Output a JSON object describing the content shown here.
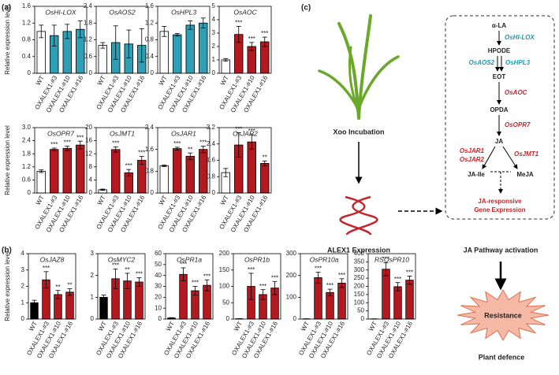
{
  "panel_labels": [
    "(a)",
    "(b)",
    "(c)"
  ],
  "chart_data": [
    {
      "type": "bar",
      "title": "OsHI-LOX",
      "ylabel": "Relative expression level",
      "categories": [
        "WT",
        "OXALEX1-#3",
        "OXALEX1-#10",
        "OXALEX1-#16"
      ],
      "values": [
        1.0,
        0.9,
        1.0,
        1.05
      ],
      "errors": [
        0.15,
        0.25,
        0.17,
        0.2
      ],
      "colors": [
        "#ffffff",
        "#2e9fb5",
        "#2e9fb5",
        "#2e9fb5"
      ],
      "annotations": [
        null,
        null,
        null,
        null
      ],
      "ylim": [
        0,
        1.6
      ],
      "yticks": [
        0,
        0.4,
        0.8,
        1.2,
        1.6
      ]
    },
    {
      "type": "bar",
      "title": "OsAOS2",
      "categories": [
        "WT",
        "OXALEX1-#3",
        "OXALEX1-#10",
        "OXALEX1-#16"
      ],
      "values": [
        1.0,
        1.1,
        1.05,
        1.0
      ],
      "errors": [
        0.1,
        0.6,
        0.5,
        0.6
      ],
      "colors": [
        "#ffffff",
        "#2e9fb5",
        "#2e9fb5",
        "#2e9fb5"
      ],
      "annotations": [
        null,
        null,
        null,
        null
      ],
      "ylim": [
        0,
        2.4
      ],
      "yticks": [
        0,
        0.6,
        1.2,
        1.8,
        2.4
      ]
    },
    {
      "type": "bar",
      "title": "OsHPL3",
      "categories": [
        "WT",
        "OXALEX1-#3",
        "OXALEX1-#10",
        "OXALEX1-#16"
      ],
      "values": [
        1.0,
        0.92,
        1.15,
        1.2
      ],
      "errors": [
        0.12,
        0.03,
        0.1,
        0.12
      ],
      "colors": [
        "#ffffff",
        "#2e9fb5",
        "#2e9fb5",
        "#2e9fb5"
      ],
      "annotations": [
        null,
        null,
        null,
        null
      ],
      "ylim": [
        0,
        1.6
      ],
      "yticks": [
        0,
        0.4,
        0.8,
        1.2,
        1.6
      ]
    },
    {
      "type": "bar",
      "title": "OsAOC",
      "categories": [
        "WT",
        "OXALEX1-#3",
        "OXALEX1-#10",
        "OXALEX1-#16"
      ],
      "values": [
        1.0,
        2.9,
        2.0,
        2.35
      ],
      "errors": [
        0.1,
        0.6,
        0.3,
        0.35
      ],
      "colors": [
        "#ffffff",
        "#b3191e",
        "#b3191e",
        "#b3191e"
      ],
      "annotations": [
        null,
        "***",
        "***",
        "***"
      ],
      "ylim": [
        0,
        5
      ],
      "yticks": [
        0,
        1,
        2,
        3,
        4,
        5
      ]
    },
    {
      "type": "bar",
      "title": "OsOPR7",
      "ylabel": "Relative expression level",
      "categories": [
        "WT",
        "OXALEX1-#3",
        "OXALEX1-#10",
        "OXALEX1-#16"
      ],
      "values": [
        1.0,
        2.0,
        2.05,
        2.2
      ],
      "errors": [
        0.06,
        0.06,
        0.1,
        0.18
      ],
      "colors": [
        "#ffffff",
        "#b3191e",
        "#b3191e",
        "#b3191e"
      ],
      "annotations": [
        null,
        "***",
        "***",
        "***"
      ],
      "ylim": [
        0,
        3
      ],
      "yticks": [
        0,
        0.6,
        1.2,
        1.8,
        2.4,
        {
          "value": 3,
          "label": "3.0"
        }
      ]
    },
    {
      "type": "bar",
      "title": "OsJMT1",
      "categories": [
        "WT",
        "OXALEX1-#3",
        "OXALEX1-#10",
        "OXALEX1-#16"
      ],
      "values": [
        1.0,
        13.3,
        6.2,
        10.0
      ],
      "errors": [
        0.2,
        0.8,
        1.0,
        1.2
      ],
      "colors": [
        "#ffffff",
        "#b3191e",
        "#b3191e",
        "#b3191e"
      ],
      "annotations": [
        null,
        "***",
        "***",
        "***"
      ],
      "ylim": [
        0,
        20
      ],
      "yticks": [
        0,
        4,
        8,
        12,
        16,
        20
      ]
    },
    {
      "type": "bar",
      "title": "OsJAR1",
      "categories": [
        "WT",
        "OXALEX1-#3",
        "OXALEX1-#10",
        "OXALEX1-#16"
      ],
      "values": [
        1.0,
        1.63,
        1.35,
        1.6
      ],
      "errors": [
        0.03,
        0.05,
        0.12,
        0.12
      ],
      "colors": [
        "#ffffff",
        "#b3191e",
        "#b3191e",
        "#b3191e"
      ],
      "annotations": [
        null,
        "***",
        "**",
        "***"
      ],
      "ylim": [
        0,
        2.4
      ],
      "yticks": [
        0,
        0.8,
        1.6,
        2.4
      ]
    },
    {
      "type": "bar",
      "title": "OsJAR2",
      "categories": [
        "WT",
        "OXALEX1-#3",
        "OXALEX1-#10",
        "OXALEX1-#16"
      ],
      "values": [
        1.0,
        2.35,
        2.5,
        1.45
      ],
      "errors": [
        0.2,
        0.6,
        0.35,
        0.12
      ],
      "colors": [
        "#ffffff",
        "#b3191e",
        "#b3191e",
        "#b3191e"
      ],
      "annotations": [
        null,
        "***",
        "***",
        "**"
      ],
      "ylim": [
        0,
        3.2
      ],
      "yticks": [
        0,
        0.8,
        1.6,
        2.4,
        3.2
      ]
    },
    {
      "type": "bar",
      "title": "OsJAZ8",
      "ylabel": "Relative expression level",
      "categories": [
        "WT",
        "OXALEX1-#3",
        "OXALEX1-#10",
        "OXALEX1-#16"
      ],
      "values": [
        1.0,
        2.4,
        1.5,
        1.65
      ],
      "errors": [
        0.15,
        0.5,
        0.25,
        0.2
      ],
      "colors": [
        "#000000",
        "#b3191e",
        "#b3191e",
        "#b3191e"
      ],
      "annotations": [
        null,
        "***",
        "**",
        "**"
      ],
      "ylim": [
        0,
        4
      ],
      "yticks": [
        0,
        1,
        2,
        3,
        4
      ]
    },
    {
      "type": "bar",
      "title": "OsMYC2",
      "categories": [
        "WT",
        "OXALEX1-#3",
        "OXALEX1-#10",
        "OXALEX1-#16"
      ],
      "values": [
        1.0,
        1.85,
        1.75,
        1.7
      ],
      "errors": [
        0.1,
        0.45,
        0.35,
        0.2
      ],
      "colors": [
        "#000000",
        "#b3191e",
        "#b3191e",
        "#b3191e"
      ],
      "annotations": [
        null,
        "***",
        "**",
        "***"
      ],
      "ylim": [
        0,
        3
      ],
      "yticks": [
        0,
        1,
        2,
        3
      ]
    },
    {
      "type": "bar",
      "title": "OsPR1a",
      "categories": [
        "WT",
        "OXALEX1-#3",
        "OXALEX1-#10",
        "OXALEX1-#16"
      ],
      "values": [
        1,
        41,
        26,
        31
      ],
      "errors": [
        0.3,
        6,
        4,
        5
      ],
      "colors": [
        "#000000",
        "#b3191e",
        "#b3191e",
        "#b3191e"
      ],
      "annotations": [
        null,
        "***",
        "***",
        "***"
      ],
      "ylim": [
        0,
        60
      ],
      "yticks": [
        0,
        10,
        20,
        30,
        40,
        50,
        60
      ]
    },
    {
      "type": "bar",
      "title": "OsPR1b",
      "categories": [
        "WT",
        "OXALEX1-#3",
        "OXALEX1-#10",
        "OXALEX1-#16"
      ],
      "values": [
        1,
        100,
        75,
        95
      ],
      "errors": [
        0.3,
        40,
        15,
        20
      ],
      "colors": [
        "#000000",
        "#b3191e",
        "#b3191e",
        "#b3191e"
      ],
      "annotations": [
        null,
        "***",
        "***",
        "***"
      ],
      "ylim": [
        0,
        200
      ],
      "yticks": [
        0,
        50,
        100,
        150,
        200
      ]
    },
    {
      "type": "bar",
      "title": "OsPR10a",
      "categories": [
        "WT",
        "OXALEX1-#3",
        "OXALEX1-#10",
        "OXALEX1-#16"
      ],
      "values": [
        1,
        190,
        122,
        165
      ],
      "errors": [
        0.3,
        25,
        15,
        20
      ],
      "colors": [
        "#000000",
        "#b3191e",
        "#b3191e",
        "#b3191e"
      ],
      "annotations": [
        null,
        "***",
        "***",
        "***"
      ],
      "ylim": [
        0,
        300
      ],
      "yticks": [
        0,
        100,
        200,
        300
      ]
    },
    {
      "type": "bar",
      "title": "RSOsPR10",
      "categories": [
        "WT",
        "OXALEX1-#3",
        "OXALEX1-#10",
        "OXALEX1-#16"
      ],
      "values": [
        1,
        305,
        198,
        238
      ],
      "errors": [
        0.3,
        40,
        25,
        25
      ],
      "colors": [
        "#000000",
        "#b3191e",
        "#b3191e",
        "#b3191e"
      ],
      "annotations": [
        null,
        "***",
        "***",
        "***"
      ],
      "ylim": [
        0,
        400
      ],
      "yticks": [
        0,
        50,
        100,
        150,
        200,
        250,
        300,
        350,
        400
      ]
    }
  ],
  "diagram": {
    "incubation": "Xoo Incubation",
    "expression": "ALEX1 Expression",
    "activation": "JA Pathway activation",
    "resistance": "Resistance",
    "defence": "Plant defence",
    "pathway": {
      "ala": "α-LA",
      "hilox": "OsHI-LOX",
      "hpode": "HPODE",
      "aos2": "OsAOS2",
      "hpl3": "OsHPL3",
      "eot": "EOT",
      "aoc": "OsAOC",
      "opda": "OPDA",
      "opr7": "OsOPR7",
      "ja": "JA",
      "jar1": "OsJAR1",
      "jar2": "OsJAR2",
      "jmt1": "OsJMT1",
      "jaile": "JA-Ile",
      "meja": "MeJA",
      "resp1": "JA-responsive",
      "resp2": "Gene Expression"
    }
  }
}
